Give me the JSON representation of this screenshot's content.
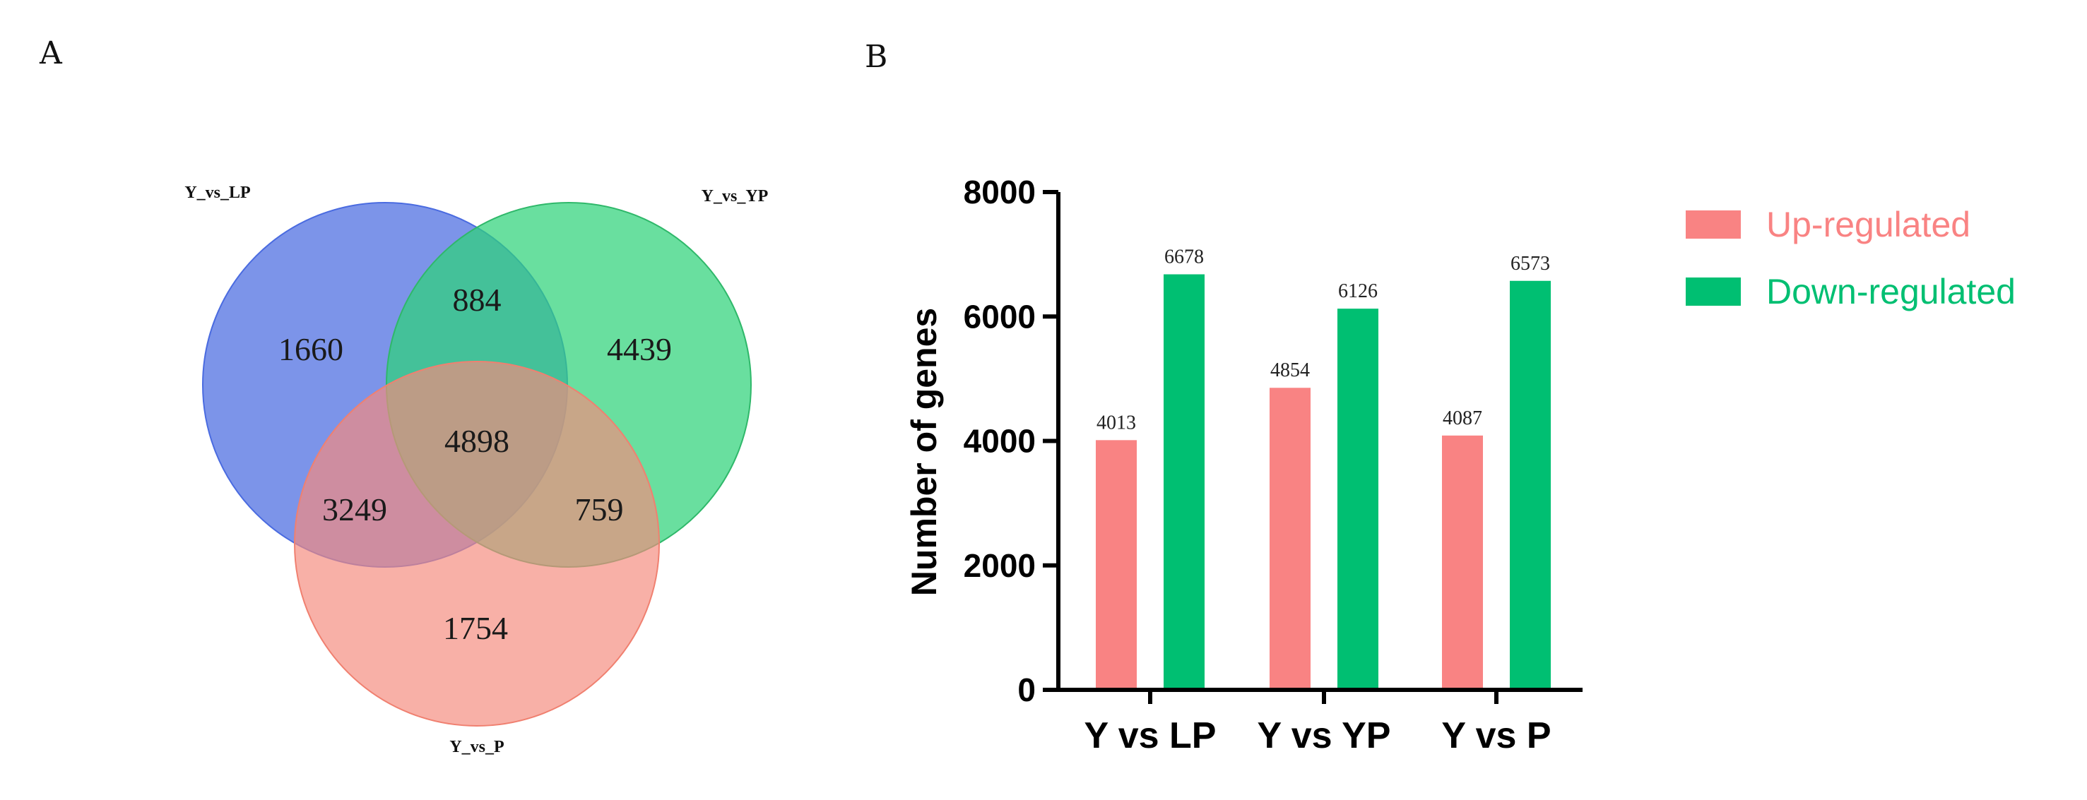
{
  "panels": {
    "a": "A",
    "b": "B"
  },
  "venn": {
    "sets": [
      "Y_vs_LP",
      "Y_vs_YP",
      "Y_vs_P"
    ],
    "regions": {
      "LP_only": "1660",
      "YP_only": "4439",
      "P_only": "1754",
      "LP_YP": "884",
      "LP_P": "3249",
      "YP_P": "759",
      "all": "4898"
    },
    "colors": {
      "Y_vs_LP": "#4a6be0",
      "Y_vs_YP": "#2fd27a",
      "Y_vs_P": "#f58a7e"
    }
  },
  "chart_data": {
    "type": "bar",
    "categories": [
      "Y vs LP",
      "Y vs YP",
      "Y vs P"
    ],
    "series": [
      {
        "name": "Up-regulated",
        "values": [
          4013,
          4854,
          4087
        ],
        "color": "#f98383"
      },
      {
        "name": "Down-regulated",
        "values": [
          6678,
          6126,
          6573
        ],
        "color": "#00bf72"
      }
    ],
    "ylabel": "Number of genes",
    "xlabel": "",
    "ylim": [
      0,
      8000
    ],
    "yticks": [
      0,
      2000,
      4000,
      6000,
      8000
    ],
    "legend_position": "right"
  }
}
